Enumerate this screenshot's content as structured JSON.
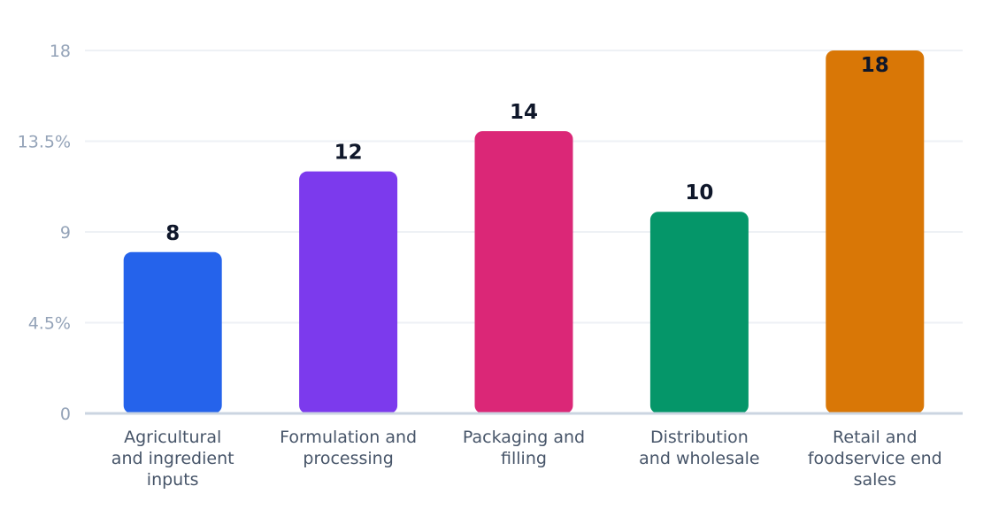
{
  "chart_data": {
    "type": "bar",
    "categories": [
      "Agricultural and ingredient inputs",
      "Formulation and processing",
      "Packaging and filling",
      "Distribution and wholesale",
      "Retail and foodservice end sales"
    ],
    "category_lines": [
      [
        "Agricultural",
        "and ingredient",
        "inputs"
      ],
      [
        "Formulation and",
        "processing"
      ],
      [
        "Packaging and",
        "filling"
      ],
      [
        "Distribution",
        "and wholesale"
      ],
      [
        "Retail and",
        "foodservice end",
        "sales"
      ]
    ],
    "values": [
      8,
      12,
      14,
      10,
      18
    ],
    "value_labels": [
      "8",
      "12",
      "14",
      "10",
      "18"
    ],
    "colors": [
      "#2563eb",
      "#7c3aed",
      "#db2777",
      "#059669",
      "#d97706"
    ],
    "yticks": [
      0,
      4.5,
      9,
      13.5,
      18
    ],
    "ytick_labels": [
      "0",
      "4.5%",
      "9",
      "13.5%",
      "18"
    ],
    "ylim": [
      0,
      18
    ],
    "grid": true,
    "title": "",
    "xlabel": "",
    "ylabel": ""
  }
}
